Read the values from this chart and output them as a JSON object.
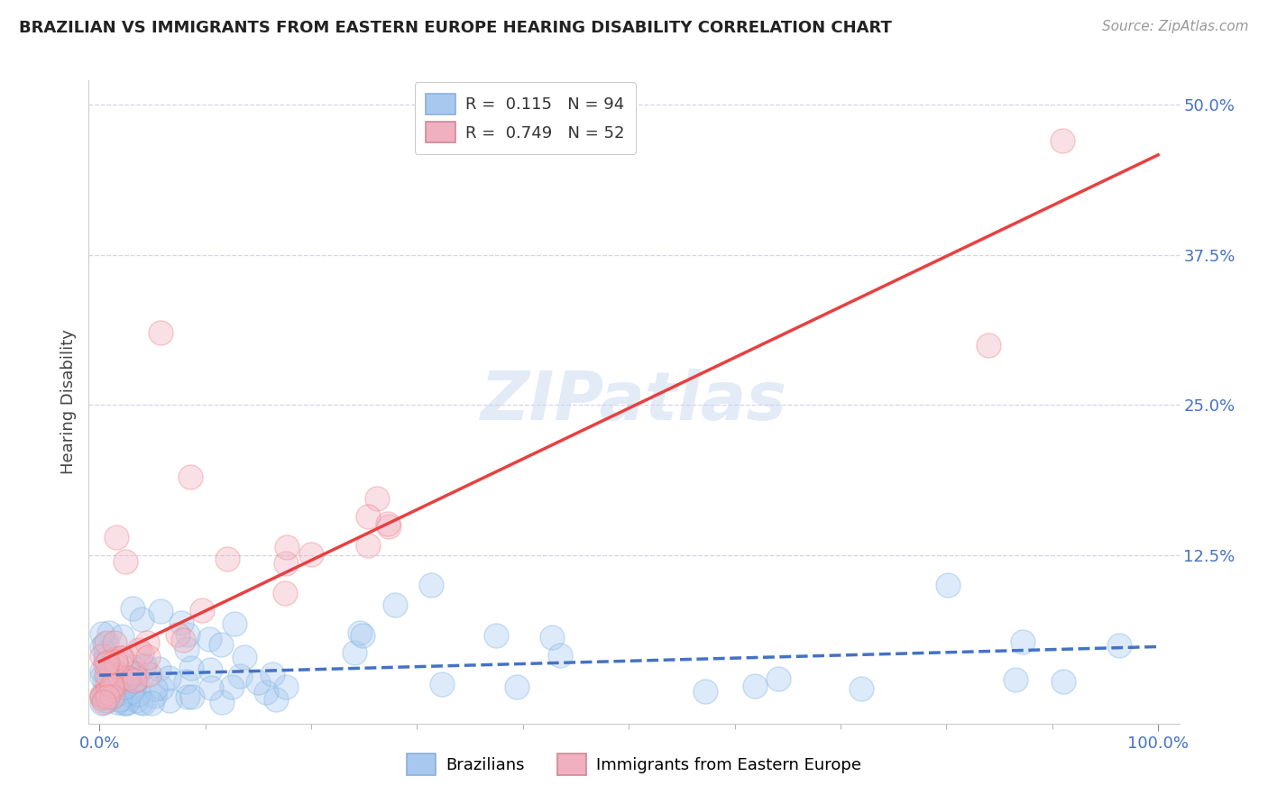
{
  "title": "BRAZILIAN VS IMMIGRANTS FROM EASTERN EUROPE HEARING DISABILITY CORRELATION CHART",
  "source": "Source: ZipAtlas.com",
  "ylabel": "Hearing Disability",
  "watermark": "ZIPatlas",
  "brazil_R": 0.115,
  "brazil_N": 94,
  "ee_R": 0.749,
  "ee_N": 52,
  "brazil_color": "#7ab3e0",
  "ee_color": "#f08080",
  "brazil_scatter_color": "#a8c8f0",
  "ee_scatter_color": "#f0b0c0",
  "brazil_line_color": "#4472c4",
  "ee_line_color": "#e84040",
  "bg_color": "#ffffff",
  "grid_color": "#d0d0e8",
  "ytick_vals": [
    0.0,
    0.125,
    0.25,
    0.375,
    0.5
  ],
  "ytick_labels": [
    "",
    "12.5%",
    "25.0%",
    "37.5%",
    "50.0%"
  ],
  "xlim": [
    -0.01,
    1.02
  ],
  "ylim": [
    -0.015,
    0.52
  ],
  "title_fontsize": 13,
  "axis_fontsize": 13,
  "watermark_fontsize": 54,
  "watermark_color": "#c8d8f0",
  "watermark_alpha": 0.5
}
